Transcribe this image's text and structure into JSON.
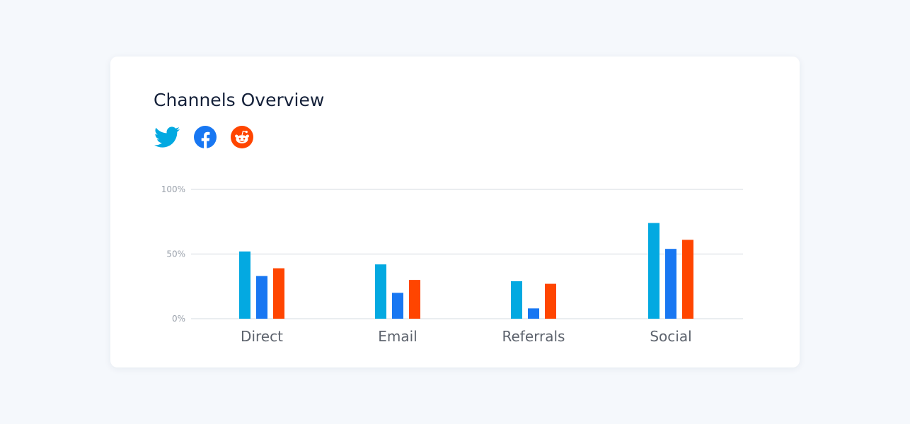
{
  "card": {
    "title": "Channels Overview"
  },
  "icons": [
    {
      "name": "twitter-icon",
      "color": "#03a9e1"
    },
    {
      "name": "facebook-icon",
      "color": "#1877f2"
    },
    {
      "name": "reddit-icon",
      "color": "#ff4500"
    }
  ],
  "chart_data": {
    "type": "bar",
    "categories": [
      "Direct",
      "Email",
      "Referrals",
      "Social"
    ],
    "series": [
      {
        "color": "#03a9e1",
        "values": [
          52,
          42,
          29,
          74
        ]
      },
      {
        "color": "#1877f2",
        "values": [
          33,
          20,
          8,
          54
        ]
      },
      {
        "color": "#ff4500",
        "values": [
          39,
          30,
          27,
          61
        ]
      }
    ],
    "yticks": [
      {
        "value": 0,
        "label": "0%"
      },
      {
        "value": 50,
        "label": "50%"
      },
      {
        "value": 100,
        "label": "100%"
      }
    ],
    "ylim": [
      0,
      100
    ],
    "grid": true,
    "legend": "none"
  }
}
